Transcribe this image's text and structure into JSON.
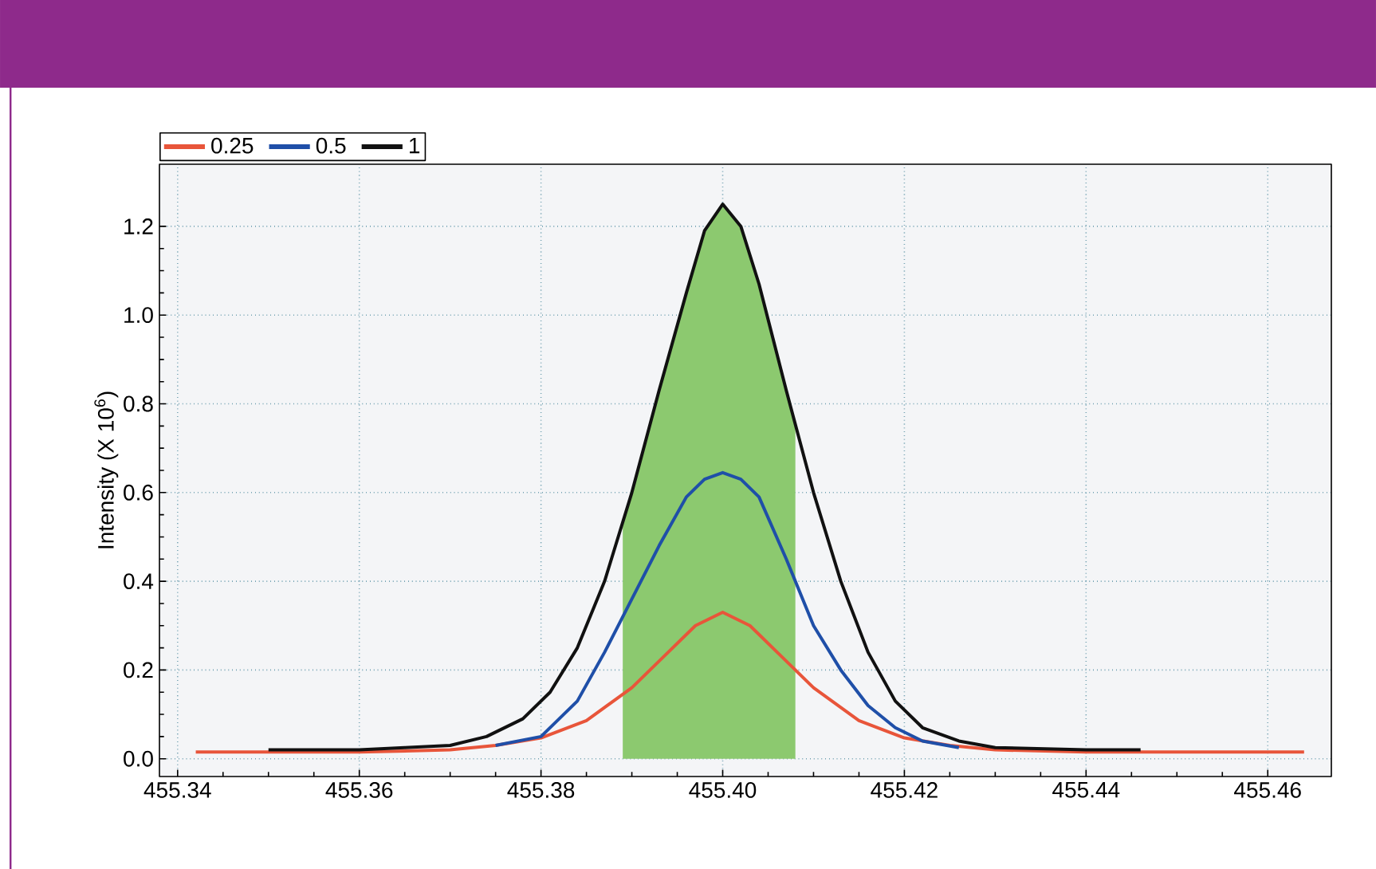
{
  "chart_data": {
    "type": "line",
    "ylabel": "Intensity (X 10$^{6}$)",
    "xlim": [
      455.338,
      455.467
    ],
    "ylim": [
      -0.04,
      1.34
    ],
    "xticks": [
      {
        "value": 455.34,
        "label": "455.34"
      },
      {
        "value": 455.36,
        "label": "455.36"
      },
      {
        "value": 455.38,
        "label": "455.38"
      },
      {
        "value": 455.4,
        "label": "455.40"
      },
      {
        "value": 455.42,
        "label": "455.42"
      },
      {
        "value": 455.44,
        "label": "455.44"
      },
      {
        "value": 455.46,
        "label": "455.46"
      }
    ],
    "yticks": [
      {
        "value": 0,
        "label": "0.0"
      },
      {
        "value": 0.2,
        "label": "0.2"
      },
      {
        "value": 0.4,
        "label": "0.4"
      },
      {
        "value": 0.6,
        "label": "0.6"
      },
      {
        "value": 0.8,
        "label": "0.8"
      },
      {
        "value": 1.0,
        "label": "1.0"
      },
      {
        "value": 1.2,
        "label": "1.2"
      }
    ],
    "grid": true,
    "legend": "top left",
    "marker": "none",
    "line_style": "solid",
    "series": [
      {
        "type": "area",
        "color": "#8cc96f",
        "x": [
          455.389,
          455.39,
          455.393,
          455.396,
          455.398,
          455.4,
          455.402,
          455.404,
          455.407,
          455.408
        ],
        "values": [
          0.53,
          0.6,
          0.83,
          1.05,
          1.19,
          1.25,
          1.2,
          1.07,
          0.83,
          0.76
        ]
      },
      {
        "name": "0.25",
        "color": "#e8553a",
        "x": [
          455.342,
          455.36,
          455.37,
          455.375,
          455.38,
          455.385,
          455.39,
          455.394,
          455.397,
          455.4,
          455.403,
          455.406,
          455.41,
          455.415,
          455.42,
          455.425,
          455.43,
          455.44,
          455.464
        ],
        "values": [
          0.015,
          0.015,
          0.02,
          0.03,
          0.047,
          0.086,
          0.16,
          0.24,
          0.3,
          0.33,
          0.3,
          0.24,
          0.16,
          0.086,
          0.047,
          0.03,
          0.02,
          0.015,
          0.015
        ]
      },
      {
        "name": "0.5",
        "color": "#1f4fa8",
        "x": [
          455.375,
          455.38,
          455.384,
          455.387,
          455.39,
          455.393,
          455.396,
          455.398,
          455.4,
          455.402,
          455.404,
          455.407,
          455.41,
          455.413,
          455.416,
          455.419,
          455.422,
          455.426
        ],
        "values": [
          0.03,
          0.05,
          0.13,
          0.24,
          0.36,
          0.48,
          0.59,
          0.63,
          0.645,
          0.63,
          0.59,
          0.45,
          0.3,
          0.2,
          0.12,
          0.07,
          0.04,
          0.025
        ]
      },
      {
        "name": "1",
        "color": "#111111",
        "x": [
          455.35,
          455.36,
          455.365,
          455.37,
          455.374,
          455.378,
          455.381,
          455.384,
          455.387,
          455.39,
          455.393,
          455.396,
          455.398,
          455.4,
          455.402,
          455.404,
          455.407,
          455.41,
          455.413,
          455.416,
          455.419,
          455.422,
          455.426,
          455.43,
          455.44,
          455.446
        ],
        "values": [
          0.02,
          0.02,
          0.025,
          0.03,
          0.05,
          0.09,
          0.15,
          0.25,
          0.4,
          0.6,
          0.83,
          1.05,
          1.19,
          1.25,
          1.2,
          1.07,
          0.83,
          0.6,
          0.4,
          0.24,
          0.13,
          0.07,
          0.04,
          0.025,
          0.02,
          0.02
        ]
      }
    ]
  }
}
